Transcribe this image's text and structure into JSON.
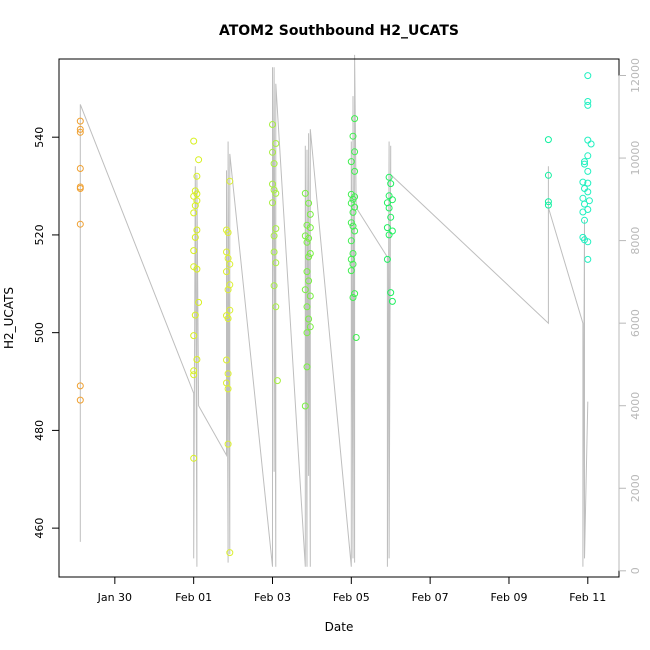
{
  "chart_data": {
    "type": "scatter",
    "title": "ATOM2 Southbound H2_UCATS",
    "xlabel": "Date",
    "ylabel": "H2_UCATS",
    "x_range": [
      "2017-01-28T14:00",
      "2017-02-11T19:00"
    ],
    "ylim": [
      450,
      556
    ],
    "y2lim": [
      -150,
      12400
    ],
    "x_ticks": [
      {
        "date": "2017-01-30",
        "label": "Jan 30"
      },
      {
        "date": "2017-02-01",
        "label": "Feb 01"
      },
      {
        "date": "2017-02-03",
        "label": "Feb 03"
      },
      {
        "date": "2017-02-05",
        "label": "Feb 05"
      },
      {
        "date": "2017-02-07",
        "label": "Feb 07"
      },
      {
        "date": "2017-02-09",
        "label": "Feb 09"
      },
      {
        "date": "2017-02-11",
        "label": "Feb 11"
      }
    ],
    "y_ticks": [
      460,
      480,
      500,
      520,
      540
    ],
    "y2_ticks": [
      0,
      2000,
      4000,
      6000,
      8000,
      10000,
      12000
    ],
    "grid": false,
    "colors": {
      "altitude_line": "#bebebe",
      "axis": "#000000",
      "right_axis": "#b8b8b8",
      "points": [
        "#ff8c00",
        "#d4e400",
        "#aaff00",
        "#66ff33",
        "#22ff66",
        "#00ffaa",
        "#00ffc8"
      ]
    },
    "series": [
      {
        "color": "#f0a030",
        "points": [
          [
            "2017-01-29T03:00",
            543.3
          ],
          [
            "2017-01-29T03:00",
            541.6
          ],
          [
            "2017-01-29T03:00",
            541.0
          ],
          [
            "2017-01-29T03:00",
            533.6
          ],
          [
            "2017-01-29T03:00",
            529.8
          ],
          [
            "2017-01-29T03:00",
            529.5
          ],
          [
            "2017-01-29T03:00",
            522.2
          ],
          [
            "2017-01-29T03:00",
            489.1
          ],
          [
            "2017-01-29T03:00",
            486.2
          ]
        ]
      },
      {
        "color": "#d8f020",
        "points": [
          [
            "2017-02-01T00:00",
            539.2
          ],
          [
            "2017-02-01T03:00",
            535.4
          ],
          [
            "2017-02-01T02:00",
            532.0
          ],
          [
            "2017-02-01T01:00",
            529.0
          ],
          [
            "2017-02-01T02:00",
            528.4
          ],
          [
            "2017-02-01T00:00",
            527.9
          ],
          [
            "2017-02-01T02:00",
            527.0
          ],
          [
            "2017-02-01T01:00",
            526.0
          ],
          [
            "2017-02-01T00:00",
            524.5
          ],
          [
            "2017-02-01T02:00",
            521.0
          ],
          [
            "2017-02-01T01:00",
            519.5
          ],
          [
            "2017-02-01T00:00",
            516.8
          ],
          [
            "2017-02-01T00:00",
            513.5
          ],
          [
            "2017-02-01T02:00",
            513.0
          ],
          [
            "2017-02-01T03:00",
            506.2
          ],
          [
            "2017-02-01T01:00",
            503.6
          ],
          [
            "2017-02-01T00:00",
            499.4
          ],
          [
            "2017-02-01T02:00",
            494.5
          ],
          [
            "2017-02-01T00:00",
            492.2
          ],
          [
            "2017-02-01T00:00",
            491.4
          ],
          [
            "2017-02-01T00:00",
            474.3
          ]
        ]
      },
      {
        "color": "#dcf030",
        "points": [
          [
            "2017-02-01T22:00",
            531.0
          ],
          [
            "2017-02-01T20:00",
            521.0
          ],
          [
            "2017-02-01T21:00",
            520.5
          ],
          [
            "2017-02-01T20:00",
            516.5
          ],
          [
            "2017-02-01T21:00",
            515.2
          ],
          [
            "2017-02-01T22:00",
            514.0
          ],
          [
            "2017-02-01T20:00",
            512.5
          ],
          [
            "2017-02-01T22:00",
            509.8
          ],
          [
            "2017-02-01T21:00",
            508.8
          ],
          [
            "2017-02-01T22:00",
            504.6
          ],
          [
            "2017-02-01T20:00",
            503.5
          ],
          [
            "2017-02-01T21:00",
            502.9
          ],
          [
            "2017-02-01T20:00",
            494.4
          ],
          [
            "2017-02-01T21:00",
            491.6
          ],
          [
            "2017-02-01T20:00",
            489.7
          ],
          [
            "2017-02-01T21:00",
            488.5
          ],
          [
            "2017-02-01T21:00",
            477.2
          ],
          [
            "2017-02-01T22:00",
            455.0
          ]
        ]
      },
      {
        "color": "#a8f040",
        "points": [
          [
            "2017-02-03T00:00",
            542.6
          ],
          [
            "2017-02-03T02:00",
            538.7
          ],
          [
            "2017-02-03T00:00",
            536.9
          ],
          [
            "2017-02-03T01:00",
            534.6
          ],
          [
            "2017-02-03T00:00",
            530.4
          ],
          [
            "2017-02-03T01:00",
            529.2
          ],
          [
            "2017-02-03T02:00",
            528.5
          ],
          [
            "2017-02-03T00:00",
            526.6
          ],
          [
            "2017-02-03T02:00",
            521.3
          ],
          [
            "2017-02-03T01:00",
            519.8
          ],
          [
            "2017-02-03T01:00",
            516.5
          ],
          [
            "2017-02-03T02:00",
            514.3
          ],
          [
            "2017-02-03T01:00",
            509.6
          ],
          [
            "2017-02-03T02:00",
            505.3
          ],
          [
            "2017-02-03T03:00",
            490.2
          ]
        ]
      },
      {
        "color": "#78f040",
        "points": [
          [
            "2017-02-03T20:00",
            528.5
          ],
          [
            "2017-02-03T22:00",
            526.5
          ],
          [
            "2017-02-03T23:00",
            524.2
          ],
          [
            "2017-02-03T21:00",
            522.0
          ],
          [
            "2017-02-03T23:00",
            521.5
          ],
          [
            "2017-02-03T20:00",
            519.8
          ],
          [
            "2017-02-03T22:00",
            519.3
          ],
          [
            "2017-02-03T21:00",
            518.5
          ],
          [
            "2017-02-03T23:00",
            516.2
          ],
          [
            "2017-02-03T22:00",
            515.5
          ],
          [
            "2017-02-03T21:00",
            512.5
          ],
          [
            "2017-02-03T22:00",
            510.6
          ],
          [
            "2017-02-03T20:00",
            508.8
          ],
          [
            "2017-02-03T23:00",
            507.5
          ],
          [
            "2017-02-03T21:00",
            505.3
          ],
          [
            "2017-02-03T22:00",
            502.8
          ],
          [
            "2017-02-03T23:00",
            501.2
          ],
          [
            "2017-02-03T21:00",
            500.0
          ],
          [
            "2017-02-03T21:00",
            493.0
          ],
          [
            "2017-02-03T20:00",
            485.0
          ]
        ]
      },
      {
        "color": "#40f050",
        "points": [
          [
            "2017-02-05T02:00",
            543.8
          ],
          [
            "2017-02-05T01:00",
            540.2
          ],
          [
            "2017-02-05T02:00",
            537.0
          ],
          [
            "2017-02-05T00:00",
            535.0
          ],
          [
            "2017-02-05T02:00",
            533.0
          ],
          [
            "2017-02-05T00:00",
            528.3
          ],
          [
            "2017-02-05T02:00",
            527.8
          ],
          [
            "2017-02-05T01:00",
            527.3
          ],
          [
            "2017-02-05T00:00",
            526.5
          ],
          [
            "2017-02-05T02:00",
            525.7
          ],
          [
            "2017-02-05T01:00",
            524.6
          ],
          [
            "2017-02-05T00:00",
            522.5
          ],
          [
            "2017-02-05T01:00",
            521.8
          ],
          [
            "2017-02-05T02:00",
            520.8
          ],
          [
            "2017-02-05T00:00",
            518.8
          ],
          [
            "2017-02-05T01:00",
            516.2
          ],
          [
            "2017-02-05T00:00",
            515.0
          ],
          [
            "2017-02-05T01:00",
            514.0
          ],
          [
            "2017-02-05T00:00",
            512.7
          ],
          [
            "2017-02-05T02:00",
            508.0
          ],
          [
            "2017-02-05T01:00",
            507.2
          ],
          [
            "2017-02-05T03:00",
            499.0
          ]
        ]
      },
      {
        "color": "#20f060",
        "points": [
          [
            "2017-02-05T23:00",
            531.8
          ],
          [
            "2017-02-06T00:00",
            530.5
          ],
          [
            "2017-02-05T23:00",
            528.0
          ],
          [
            "2017-02-06T01:00",
            527.2
          ],
          [
            "2017-02-05T22:00",
            526.6
          ],
          [
            "2017-02-05T23:00",
            525.5
          ],
          [
            "2017-02-06T00:00",
            523.6
          ],
          [
            "2017-02-05T22:00",
            521.5
          ],
          [
            "2017-02-06T01:00",
            520.8
          ],
          [
            "2017-02-05T23:00",
            520.0
          ],
          [
            "2017-02-05T22:00",
            515.0
          ],
          [
            "2017-02-06T00:00",
            508.2
          ],
          [
            "2017-02-06T01:00",
            506.4
          ]
        ]
      },
      {
        "color": "#10f0a0",
        "points": [
          [
            "2017-02-10T00:00",
            539.5
          ],
          [
            "2017-02-10T00:00",
            532.2
          ],
          [
            "2017-02-10T00:00",
            526.8
          ],
          [
            "2017-02-10T00:00",
            526.1
          ]
        ]
      },
      {
        "color": "#20f0c0",
        "points": [
          [
            "2017-02-11T00:00",
            552.6
          ],
          [
            "2017-02-11T00:00",
            547.3
          ],
          [
            "2017-02-11T00:00",
            546.5
          ],
          [
            "2017-02-11T00:00",
            539.4
          ],
          [
            "2017-02-11T02:00",
            538.6
          ],
          [
            "2017-02-11T00:00",
            536.2
          ],
          [
            "2017-02-10T22:00",
            535.0
          ],
          [
            "2017-02-10T22:00",
            534.5
          ],
          [
            "2017-02-11T00:00",
            533.0
          ],
          [
            "2017-02-10T21:00",
            530.8
          ],
          [
            "2017-02-11T00:00",
            530.6
          ],
          [
            "2017-02-10T22:00",
            529.5
          ],
          [
            "2017-02-11T00:00",
            528.8
          ],
          [
            "2017-02-10T21:00",
            527.5
          ],
          [
            "2017-02-11T01:00",
            527.0
          ],
          [
            "2017-02-10T22:00",
            526.3
          ],
          [
            "2017-02-11T00:00",
            525.2
          ],
          [
            "2017-02-10T21:00",
            524.7
          ],
          [
            "2017-02-10T22:00",
            523.0
          ],
          [
            "2017-02-10T21:00",
            519.5
          ],
          [
            "2017-02-10T22:00",
            519.0
          ],
          [
            "2017-02-11T00:00",
            518.6
          ],
          [
            "2017-02-11T00:00",
            515.0
          ]
        ]
      }
    ],
    "altitude_track": [
      [
        "2017-01-29T03:00",
        11000
      ],
      [
        "2017-01-29T03:00",
        700
      ],
      [
        "2017-01-29T03:00",
        11300
      ],
      [
        "2017-02-01T00:00",
        4300
      ],
      [
        "2017-02-01T00:00",
        300
      ],
      [
        "2017-02-01T01:00",
        9800
      ],
      [
        "2017-02-01T02:00",
        100
      ],
      [
        "2017-02-01T02:00",
        9600
      ],
      [
        "2017-02-01T03:00",
        4000
      ],
      [
        "2017-02-01T20:00",
        2800
      ],
      [
        "2017-02-01T20:00",
        9700
      ],
      [
        "2017-02-01T21:00",
        200
      ],
      [
        "2017-02-01T21:00",
        10400
      ],
      [
        "2017-02-01T22:00",
        400
      ],
      [
        "2017-02-01T22:00",
        10100
      ],
      [
        "2017-02-03T00:00",
        100
      ],
      [
        "2017-02-03T00:00",
        12200
      ],
      [
        "2017-02-03T01:00",
        6200
      ],
      [
        "2017-02-03T01:00",
        2400
      ],
      [
        "2017-02-03T01:00",
        12200
      ],
      [
        "2017-02-03T02:00",
        100
      ],
      [
        "2017-02-03T02:00",
        11800
      ],
      [
        "2017-02-03T20:00",
        100
      ],
      [
        "2017-02-03T20:00",
        10300
      ],
      [
        "2017-02-03T21:00",
        100
      ],
      [
        "2017-02-03T21:00",
        10200
      ],
      [
        "2017-02-03T22:00",
        2300
      ],
      [
        "2017-02-03T22:00",
        10600
      ],
      [
        "2017-02-03T23:00",
        100
      ],
      [
        "2017-02-03T23:00",
        10700
      ],
      [
        "2017-02-05T00:00",
        100
      ],
      [
        "2017-02-05T00:00",
        10400
      ],
      [
        "2017-02-05T01:00",
        300
      ],
      [
        "2017-02-05T01:00",
        11500
      ],
      [
        "2017-02-05T02:00",
        200
      ],
      [
        "2017-02-05T02:00",
        12500
      ],
      [
        "2017-02-05T03:00",
        8800
      ],
      [
        "2017-02-05T22:00",
        7600
      ],
      [
        "2017-02-05T22:00",
        100
      ],
      [
        "2017-02-05T23:00",
        10400
      ],
      [
        "2017-02-05T23:00",
        300
      ],
      [
        "2017-02-06T00:00",
        10300
      ],
      [
        "2017-02-06T00:00",
        9600
      ],
      [
        "2017-02-10T00:00",
        6000
      ],
      [
        "2017-02-10T00:00",
        9800
      ],
      [
        "2017-02-10T00:00",
        8800
      ],
      [
        "2017-02-10T21:00",
        6000
      ],
      [
        "2017-02-10T21:00",
        100
      ],
      [
        "2017-02-10T22:00",
        8500
      ],
      [
        "2017-02-10T22:00",
        300
      ],
      [
        "2017-02-11T00:00",
        4100
      ]
    ]
  }
}
